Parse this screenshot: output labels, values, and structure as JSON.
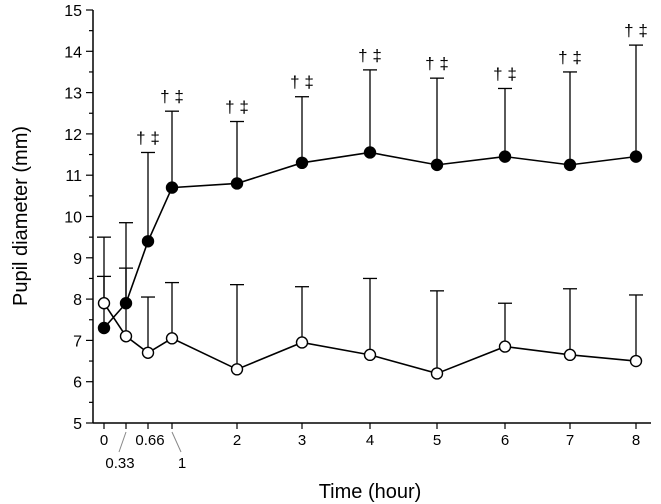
{
  "chart_data": {
    "type": "line",
    "title": "",
    "xlabel": "Time (hour)",
    "ylabel": "Pupil diameter (mm)",
    "ylim": [
      5,
      15
    ],
    "yticks": [
      5,
      6,
      7,
      8,
      9,
      10,
      11,
      12,
      13,
      14,
      15
    ],
    "x": [
      0,
      0.33,
      0.66,
      1,
      2,
      3,
      4,
      5,
      6,
      7,
      8
    ],
    "x_tick_labels": [
      "0",
      "0.33",
      "0.66",
      "1",
      "2",
      "3",
      "4",
      "5",
      "6",
      "7",
      "8"
    ],
    "series": [
      {
        "name": "filled",
        "marker": "filled-circle",
        "values": [
          7.3,
          7.9,
          9.4,
          10.7,
          10.8,
          11.3,
          11.55,
          11.25,
          11.45,
          11.25,
          11.45
        ],
        "error_upper": [
          8.55,
          9.85,
          11.55,
          12.55,
          12.3,
          12.9,
          13.55,
          13.35,
          13.1,
          13.5,
          14.15
        ],
        "annotations": [
          "",
          "",
          "† ‡",
          "† ‡",
          "† ‡",
          "† ‡",
          "† ‡",
          "† ‡",
          "† ‡",
          "† ‡",
          "† ‡"
        ]
      },
      {
        "name": "open",
        "marker": "open-circle",
        "values": [
          7.9,
          7.1,
          6.7,
          7.05,
          6.3,
          6.95,
          6.65,
          6.2,
          6.85,
          6.65,
          6.5
        ],
        "error_upper": [
          9.5,
          8.75,
          8.05,
          8.4,
          8.35,
          8.3,
          8.5,
          8.2,
          7.9,
          8.25,
          8.1
        ]
      }
    ]
  }
}
